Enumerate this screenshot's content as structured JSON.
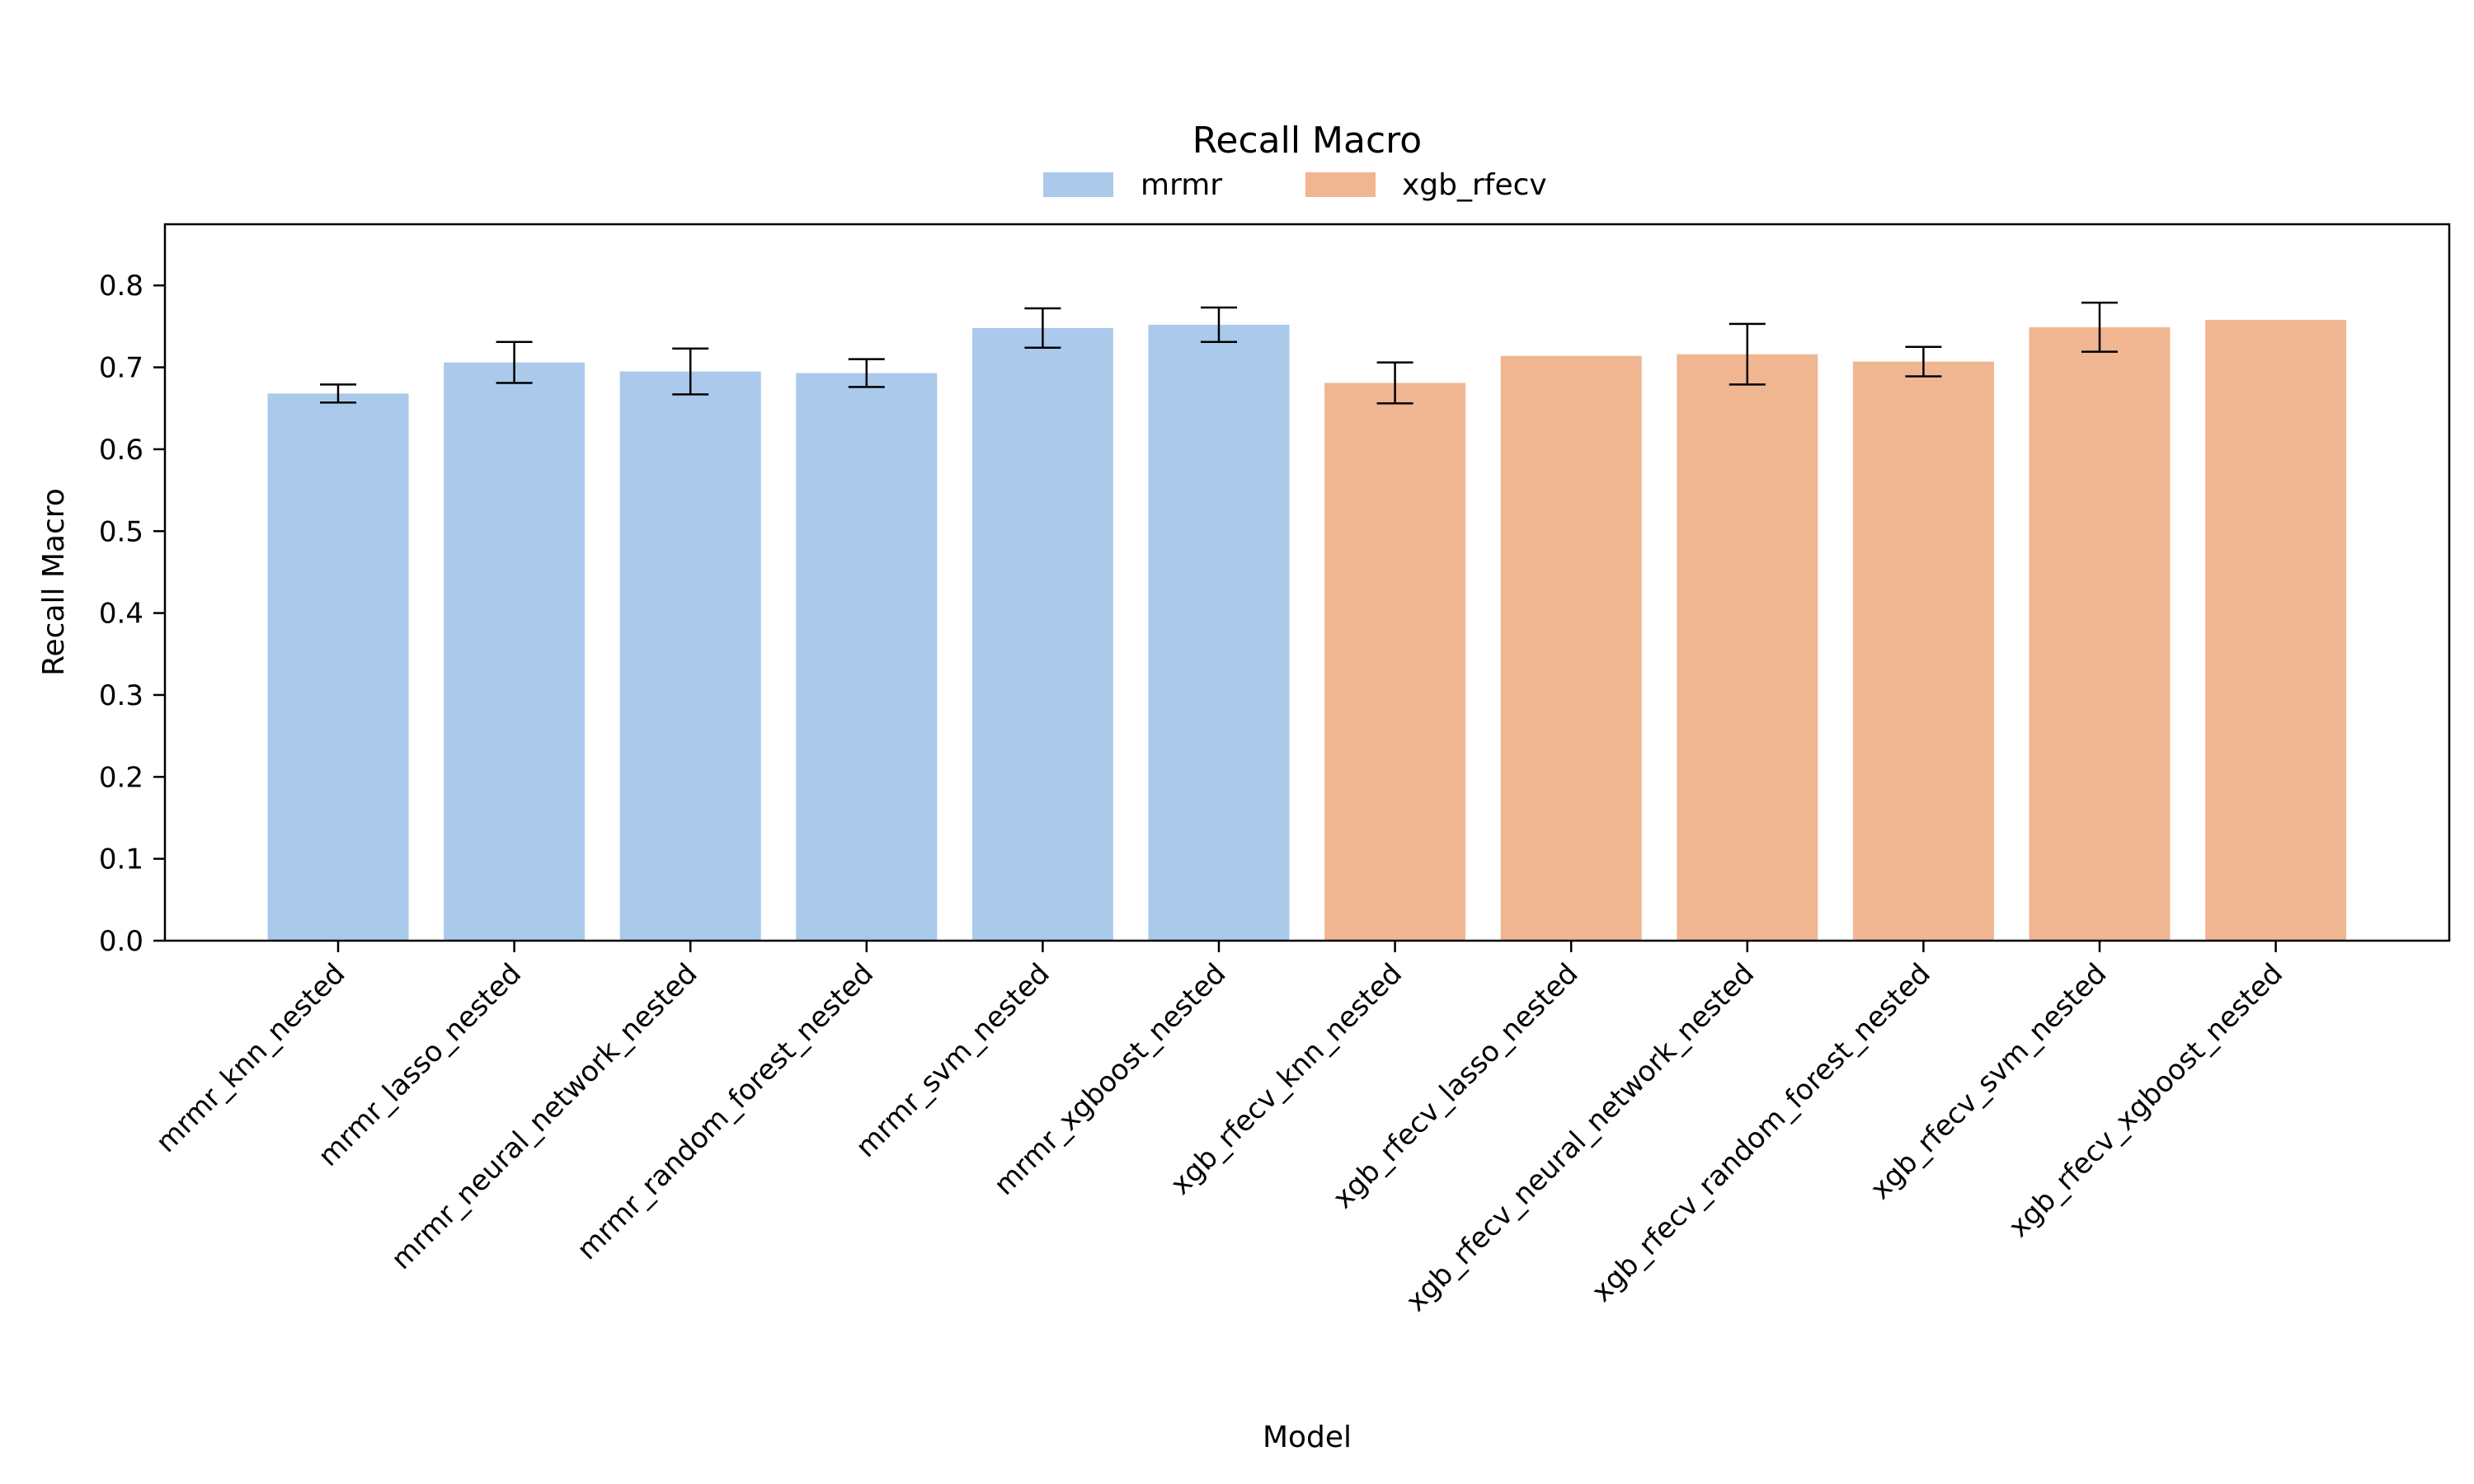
{
  "chart_data": {
    "type": "bar",
    "title": "Recall Macro",
    "xlabel": "Model",
    "ylabel": "Recall Macro",
    "ylim": [
      0,
      0.8747
    ],
    "yticks": [
      "0.0",
      "0.1",
      "0.2",
      "0.3",
      "0.4",
      "0.5",
      "0.6",
      "0.7",
      "0.8"
    ],
    "grid": false,
    "legend_position": "top-center",
    "categories": [
      "mrmr_knn_nested",
      "mrmr_lasso_nested",
      "mrmr_neural_network_nested",
      "mrmr_random_forest_nested",
      "mrmr_svm_nested",
      "mrmr_xgboost_nested",
      "xgb_rfecv_knn_nested",
      "xgb_rfecv_lasso_nested",
      "xgb_rfecv_neural_network_nested",
      "xgb_rfecv_random_forest_nested",
      "xgb_rfecv_svm_nested",
      "xgb_rfecv_xgboost_nested"
    ],
    "values": [
      0.668,
      0.706,
      0.695,
      0.693,
      0.748,
      0.752,
      0.681,
      0.714,
      0.716,
      0.707,
      0.749,
      0.758
    ],
    "errors": [
      0.011,
      0.025,
      0.028,
      0.017,
      0.024,
      0.021,
      0.025,
      0.0,
      0.037,
      0.018,
      0.03,
      0.0
    ],
    "series_index": [
      0,
      0,
      0,
      0,
      0,
      0,
      1,
      1,
      1,
      1,
      1,
      1
    ],
    "series": [
      {
        "name": "mrmr",
        "color": "#abc9eb"
      },
      {
        "name": "xgb_rfecv",
        "color": "#f0b692"
      }
    ]
  }
}
